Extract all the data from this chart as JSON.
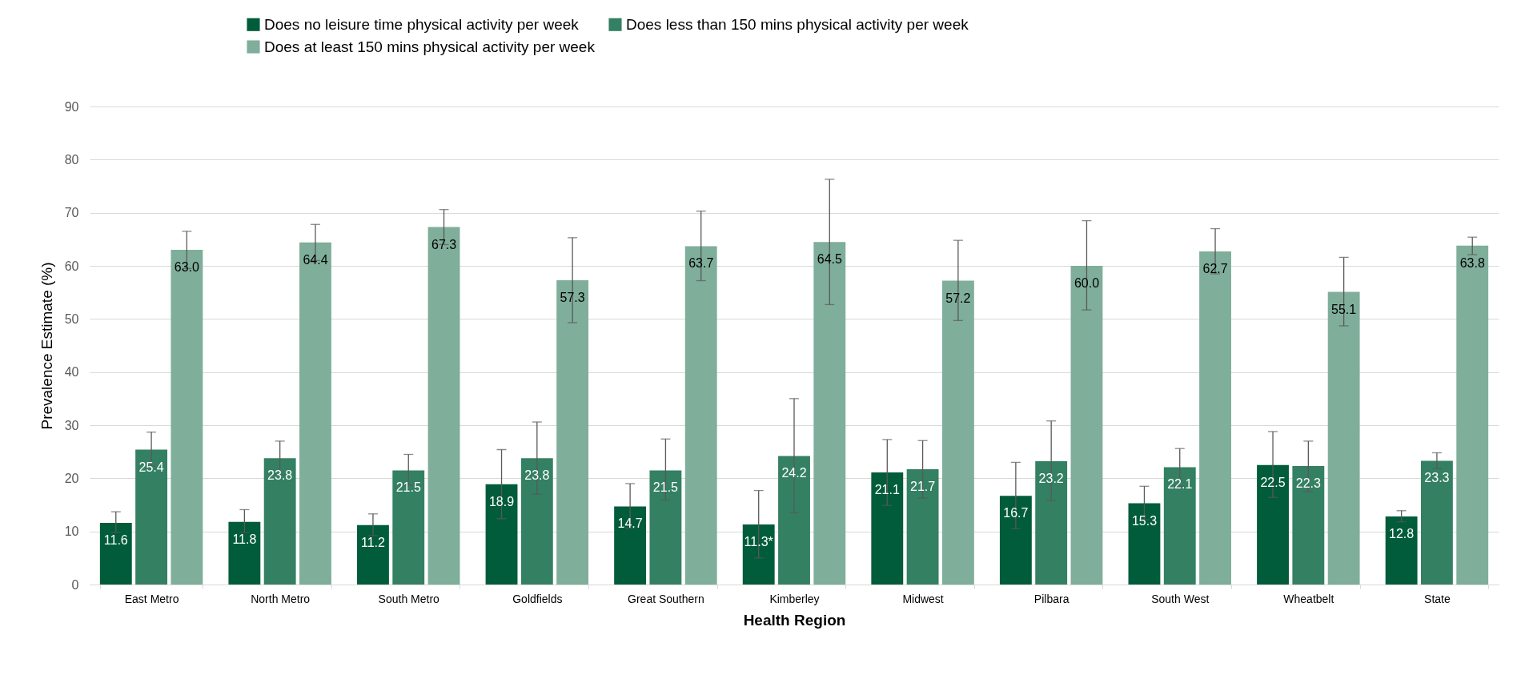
{
  "chart_data": {
    "type": "bar",
    "xlabel": "Health Region",
    "ylabel": "Prevalence Estimate (%)",
    "categories": [
      "East Metro",
      "North Metro",
      "South Metro",
      "Goldfields",
      "Great Southern",
      "Kimberley",
      "Midwest",
      "Pilbara",
      "South West",
      "Wheatbelt",
      "State"
    ],
    "series": [
      {
        "name": "Does no leisure time physical activity per week",
        "color": "#005c3a",
        "values": [
          11.6,
          11.8,
          11.2,
          18.9,
          14.7,
          11.3,
          21.1,
          16.7,
          15.3,
          22.5,
          12.8
        ],
        "value_labels": [
          "11.6",
          "11.8",
          "11.2",
          "18.9",
          "14.7",
          "11.3*",
          "21.1",
          "16.7",
          "15.3",
          "22.5",
          "12.8"
        ],
        "errors": [
          [
            9.8,
            13.7
          ],
          [
            9.8,
            14.1
          ],
          [
            9.2,
            13.3
          ],
          [
            12.4,
            25.4
          ],
          [
            10.6,
            19.0
          ],
          [
            5.0,
            17.7
          ],
          [
            14.9,
            27.3
          ],
          [
            10.5,
            23.0
          ],
          [
            12.2,
            18.5
          ],
          [
            16.4,
            28.8
          ],
          [
            11.8,
            13.9
          ]
        ]
      },
      {
        "name": "Does less than 150 mins physical activity per week",
        "color": "#348063",
        "values": [
          25.4,
          23.8,
          21.5,
          23.8,
          21.5,
          24.2,
          21.7,
          23.2,
          22.1,
          22.3,
          23.3
        ],
        "value_labels": [
          "25.4",
          "23.8",
          "21.5",
          "23.8",
          "21.5",
          "24.2",
          "21.7",
          "23.2",
          "22.1",
          "22.3",
          "23.3"
        ],
        "errors": [
          [
            22.3,
            28.7
          ],
          [
            20.7,
            27.0
          ],
          [
            18.7,
            24.5
          ],
          [
            17.0,
            30.6
          ],
          [
            15.9,
            27.4
          ],
          [
            13.5,
            35.0
          ],
          [
            16.3,
            27.1
          ],
          [
            15.8,
            30.8
          ],
          [
            18.5,
            25.6
          ],
          [
            17.5,
            27.0
          ],
          [
            21.8,
            24.8
          ]
        ]
      },
      {
        "name": "Does at least 150 mins physical activity per week",
        "color": "#7fae9b",
        "values": [
          63.0,
          64.4,
          67.3,
          57.3,
          63.7,
          64.5,
          57.2,
          60.0,
          62.7,
          55.1,
          63.8
        ],
        "value_labels": [
          "63.0",
          "64.4",
          "67.3",
          "57.3",
          "63.7",
          "64.5",
          "57.2",
          "60.0",
          "62.7",
          "55.1",
          "63.8"
        ],
        "errors": [
          [
            59.5,
            66.5
          ],
          [
            61.0,
            67.8
          ],
          [
            64.0,
            70.6
          ],
          [
            49.3,
            65.3
          ],
          [
            57.2,
            70.3
          ],
          [
            52.7,
            76.3
          ],
          [
            49.7,
            64.8
          ],
          [
            51.7,
            68.5
          ],
          [
            58.5,
            67.0
          ],
          [
            48.7,
            61.6
          ],
          [
            62.1,
            65.4
          ]
        ]
      }
    ],
    "ylim": [
      0,
      90
    ],
    "yticks": [
      0,
      10,
      20,
      30,
      40,
      50,
      60,
      70,
      80,
      90
    ],
    "grid": "y",
    "legend": "top"
  }
}
